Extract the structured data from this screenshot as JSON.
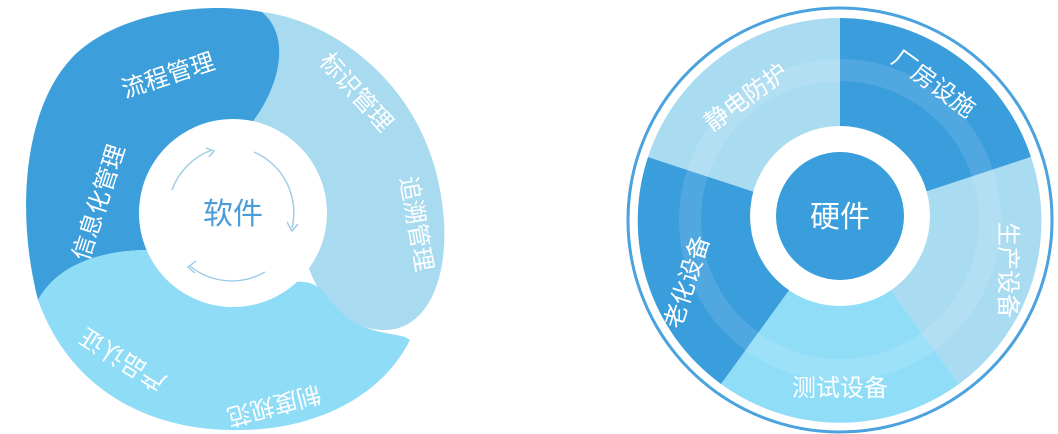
{
  "software": {
    "center": "软件",
    "labels": [
      "信息化管理",
      "流程管理",
      "标识管理",
      "追溯管理",
      "制度规范",
      "产品认证"
    ],
    "colors": {
      "blue": "#3c9fdc",
      "light": "#a8daf0",
      "cyan": "#8fdcf7",
      "text_center": "#4a9dd8"
    }
  },
  "hardware": {
    "center": "硬件",
    "labels": [
      "厂房设施",
      "生产设备",
      "测试设备",
      "老化设备",
      "静电防护"
    ],
    "colors": {
      "ring": "#4aa3df",
      "blue": "#3a9ddc",
      "light": "#a9dbf1",
      "cyan": "#8fddf7"
    }
  }
}
